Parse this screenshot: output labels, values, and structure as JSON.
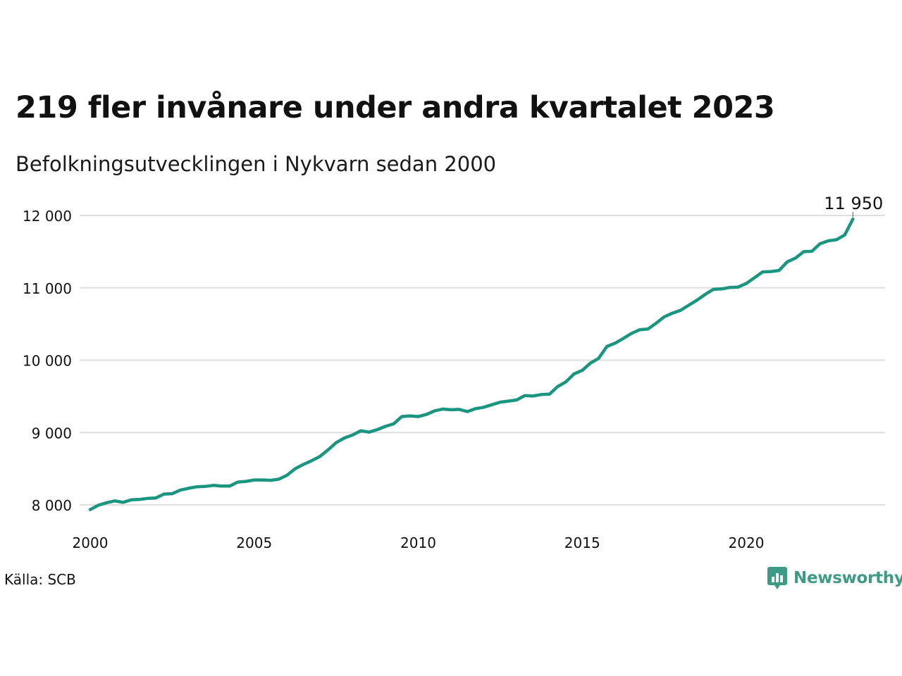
{
  "title": "219 fler invånare under andra kvartalet 2023",
  "subtitle": "Befolkningsutvecklingen i Nykvarn sedan 2000",
  "source": "Källa: SCB",
  "brand": "Newsworthy",
  "colors": {
    "line": "#1a9580",
    "grid": "#dedede",
    "brand": "#3d9a85"
  },
  "chart_data": {
    "type": "line",
    "xlim": [
      2000,
      2024.2
    ],
    "ylim": [
      7850,
      12100
    ],
    "x_ticks": [
      2000,
      2005,
      2010,
      2015,
      2020
    ],
    "y_ticks": [
      {
        "value": 8000,
        "label": "8 000"
      },
      {
        "value": 9000,
        "label": "9 000"
      },
      {
        "value": 10000,
        "label": "10 000"
      },
      {
        "value": 11000,
        "label": "11 000"
      },
      {
        "value": 12000,
        "label": "12 000"
      }
    ],
    "grid": true,
    "end_label": "11 950",
    "series": [
      {
        "x_start": 2000.0,
        "x_step": 0.25,
        "values": [
          7935,
          7995,
          8030,
          8055,
          8035,
          8070,
          8075,
          8090,
          8095,
          8150,
          8155,
          8205,
          8230,
          8250,
          8255,
          8270,
          8260,
          8260,
          8315,
          8325,
          8345,
          8345,
          8340,
          8355,
          8410,
          8500,
          8560,
          8610,
          8670,
          8760,
          8860,
          8925,
          8965,
          9025,
          9005,
          9040,
          9085,
          9120,
          9220,
          9230,
          9220,
          9250,
          9300,
          9325,
          9315,
          9320,
          9290,
          9330,
          9350,
          9385,
          9420,
          9435,
          9450,
          9510,
          9505,
          9525,
          9530,
          9635,
          9700,
          9810,
          9860,
          9960,
          10025,
          10190,
          10235,
          10300,
          10370,
          10420,
          10430,
          10510,
          10600,
          10650,
          10690,
          10760,
          10830,
          10910,
          10980,
          10985,
          11005,
          11010,
          11060,
          11140,
          11220,
          11225,
          11240,
          11360,
          11410,
          11500,
          11505,
          11610,
          11650,
          11665,
          11730,
          11950
        ]
      }
    ]
  }
}
